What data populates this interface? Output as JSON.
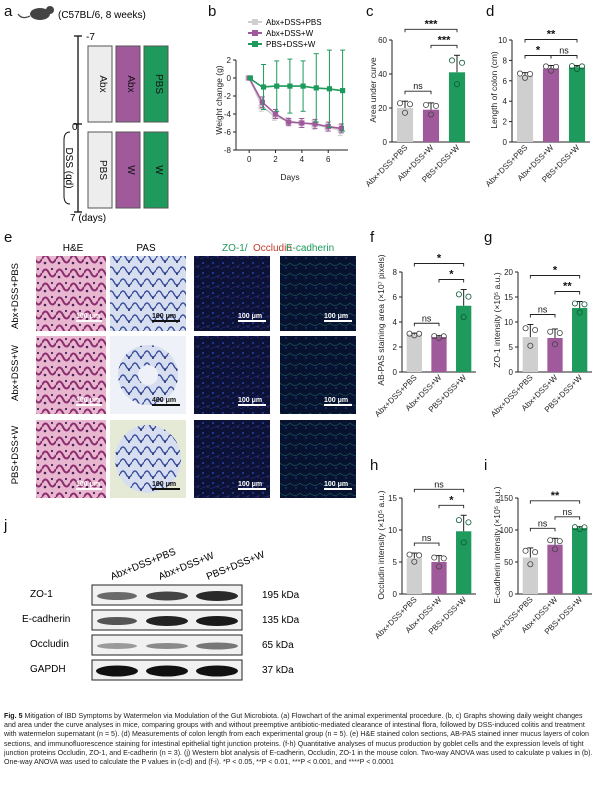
{
  "panels": {
    "a": {
      "label": "a",
      "mouse_text": "(C57BL/6, 8 weeks)",
      "tick_top": "-7",
      "tick_mid": "0",
      "tick_bottom": "7 (days)",
      "dss_label": "DSS (qd)",
      "boxes_top": [
        "Abx",
        "Abx",
        "PBS"
      ],
      "boxes_bottom": [
        "PBS",
        "W",
        "W"
      ]
    },
    "b": {
      "label": "b",
      "xlabel": "Days",
      "ylabel": "Weight change (g)",
      "legend": [
        "Abx+DSS+PBS",
        "Abx+DSS+W",
        "PBS+DSS+W"
      ]
    },
    "c": {
      "label": "c",
      "ylabel": "Area under curve",
      "sig": [
        "ns",
        "***",
        "***"
      ]
    },
    "d": {
      "label": "d",
      "ylabel": "Length of colon (cm)",
      "sig": [
        "*",
        "ns",
        "**"
      ]
    },
    "e": {
      "label": "e",
      "col_headers": [
        "H&E",
        "PAS",
        "ZO-1/",
        "Occludin",
        "E-cadherin"
      ],
      "row_labels": [
        "Abx+DSS+PBS",
        "Abx+DSS+W",
        "PBS+DSS+W"
      ],
      "scale_bars": [
        [
          "100 μm",
          "100 μm",
          "100 μm",
          "100 μm"
        ],
        [
          "100 μm",
          "400 μm",
          "100 μm",
          "100 μm"
        ],
        [
          "100 μm",
          "100 μm",
          "100 μm",
          "100 μm"
        ]
      ]
    },
    "f": {
      "label": "f",
      "ylabel": "AB-PAS staining area (×10⁷ pixels)",
      "sig": [
        "ns",
        "*",
        "*"
      ]
    },
    "g": {
      "label": "g",
      "ylabel": "ZO-1 intensity (×10⁵ a.u.)",
      "sig": [
        "ns",
        "**",
        "*"
      ]
    },
    "h": {
      "label": "h",
      "ylabel": "Occludin intensity (×10⁵ a.u.)",
      "sig": [
        "ns",
        "*",
        "ns"
      ]
    },
    "i": {
      "label": "i",
      "ylabel": "E-cadherin intensity (×10⁵ a.u.)",
      "sig": [
        "ns",
        "ns",
        "**"
      ]
    },
    "j": {
      "label": "j",
      "lane_labels": [
        "Abx+DSS+PBS",
        "Abx+DSS+W",
        "PBS+DSS+W"
      ],
      "proteins": [
        "ZO-1",
        "E-cadherin",
        "Occludin",
        "GAPDH"
      ],
      "sizes": [
        "195 kDa",
        "135 kDa",
        "65 kDa",
        "37 kDa"
      ]
    }
  },
  "groups": [
    "Abx+DSS+PBS",
    "Abx+DSS+W",
    "PBS+DSS+W"
  ],
  "colors": {
    "g1": "#cfcfcf",
    "g2": "#a05a9c",
    "g3": "#1e9a5c"
  },
  "chart_data": [
    {
      "id": "b",
      "type": "line",
      "xlabel": "Days",
      "ylabel": "Weight change (g)",
      "xlim": [
        -1,
        7.5
      ],
      "ylim": [
        -8,
        2
      ],
      "xticks": [
        0,
        2,
        4,
        6
      ],
      "yticks": [
        2,
        0,
        -2,
        -4,
        -6,
        -8
      ],
      "series": [
        {
          "name": "Abx+DSS+PBS",
          "x": [
            0,
            1,
            2,
            3,
            4,
            5,
            6,
            7
          ],
          "y": [
            0,
            -3.2,
            -4.3,
            -4.8,
            -5.0,
            -5.2,
            -5.5,
            -5.8
          ],
          "err": [
            0.2,
            0.5,
            0.4,
            0.4,
            0.5,
            0.5,
            0.4,
            0.6
          ]
        },
        {
          "name": "Abx+DSS+W",
          "x": [
            0,
            1,
            2,
            3,
            4,
            5,
            6,
            7
          ],
          "y": [
            0,
            -2.7,
            -4.0,
            -4.9,
            -5.0,
            -5.1,
            -5.4,
            -5.6
          ],
          "err": [
            0.2,
            0.6,
            0.5,
            0.4,
            0.5,
            0.5,
            0.5,
            0.5
          ]
        },
        {
          "name": "PBS+DSS+W",
          "x": [
            0,
            1,
            2,
            3,
            4,
            5,
            6,
            7
          ],
          "y": [
            0,
            -1.0,
            -0.9,
            -0.9,
            -0.9,
            -1.1,
            -1.2,
            -1.4
          ],
          "err": [
            0.1,
            2.5,
            2.8,
            3.0,
            2.8,
            3.8,
            4.3,
            4.5
          ]
        }
      ]
    },
    {
      "id": "c",
      "type": "bar",
      "categories": [
        "Abx+DSS+PBS",
        "Abx+DSS+W",
        "PBS+DSS+W"
      ],
      "values": [
        20,
        19,
        41
      ],
      "err": [
        4,
        4,
        10
      ],
      "ylabel": "Area under curve",
      "ylim": [
        0,
        60
      ],
      "yticks": [
        0,
        20,
        40,
        60
      ]
    },
    {
      "id": "d",
      "type": "bar",
      "categories": [
        "Abx+DSS+PBS",
        "Abx+DSS+W",
        "PBS+DSS+W"
      ],
      "values": [
        6.5,
        7.2,
        7.3
      ],
      "err": [
        0.3,
        0.3,
        0.2
      ],
      "ylabel": "Length of colon (cm)",
      "ylim": [
        0,
        10
      ],
      "yticks": [
        0,
        2,
        4,
        6,
        8,
        10
      ]
    },
    {
      "id": "f",
      "type": "bar",
      "categories": [
        "Abx+DSS+PBS",
        "Abx+DSS+W",
        "PBS+DSS+W"
      ],
      "values": [
        3.0,
        2.8,
        5.3
      ],
      "err": [
        0.1,
        0.1,
        1.3
      ],
      "ylabel": "AB-PAS staining area (×10⁷ pixels)",
      "ylim": [
        0,
        8
      ],
      "yticks": [
        0,
        2,
        4,
        6,
        8
      ]
    },
    {
      "id": "g",
      "type": "bar",
      "categories": [
        "Abx+DSS+PBS",
        "Abx+DSS+W",
        "PBS+DSS+W"
      ],
      "values": [
        7.0,
        6.8,
        12.8
      ],
      "err": [
        2.5,
        1.8,
        1.3
      ],
      "ylabel": "ZO-1 intensity (×10⁵ a.u.)",
      "ylim": [
        0,
        20
      ],
      "yticks": [
        0,
        5,
        10,
        15,
        20
      ]
    },
    {
      "id": "h",
      "type": "bar",
      "categories": [
        "Abx+DSS+PBS",
        "Abx+DSS+W",
        "PBS+DSS+W"
      ],
      "values": [
        5.6,
        5.0,
        9.8
      ],
      "err": [
        0.8,
        1.0,
        2.5
      ],
      "ylabel": "Occludin intensity (×10⁵ a.u.)",
      "ylim": [
        0,
        15
      ],
      "yticks": [
        0,
        5,
        10,
        15
      ]
    },
    {
      "id": "i",
      "type": "bar",
      "categories": [
        "Abx+DSS+PBS",
        "Abx+DSS+W",
        "PBS+DSS+W"
      ],
      "values": [
        57,
        77,
        103
      ],
      "err": [
        15,
        10,
        2
      ],
      "ylabel": "E-cadherin intensity (×10⁵ a.u.)",
      "ylim": [
        0,
        150
      ],
      "yticks": [
        0,
        50,
        100,
        150
      ]
    }
  ],
  "caption": {
    "fig_label": "Fig. 5",
    "text": "Mitigation of IBD Symptoms by Watermelon via Modulation of the Gut Microbiota. (a) Flowchart of the animal experimental procedure. (b, c) Graphs showing daily weight changes and area under the curve analyses in mice, comparing groups with and without preemptive antibiotic-mediated clearance of intestinal flora, followed by DSS-induced colitis and treatment with watermelon supernatant (n = 5). (d) Measurements of colon length from each experimental group (n = 5). (e) H&E stained colon sections, AB-PAS stained inner mucus layers of colon sections, and immunofluorescence staining for intestinal epithelial tight junction proteins. (f-h) Quantitative analyses of mucus production by goblet cells and the expression levels of tight junction proteins Occludin, ZO-1, and E-cadherin (n = 3). (j) Western blot analysis of E-cadherin, Occludin, ZO-1 in the mouse colon. Two-way ANOVA was used to calculate p values in (b). One-way ANOVA was used to calculate the P values in (c-d) and (f-i). *P < 0.05, **P < 0.01, ***P < 0.001, and ****P < 0.0001"
  }
}
